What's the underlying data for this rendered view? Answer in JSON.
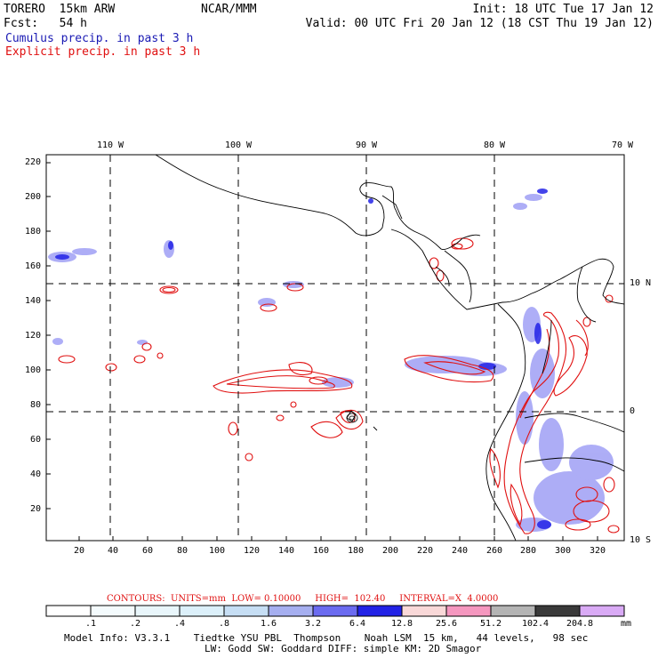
{
  "header": {
    "model": "TORERO  15km ARW",
    "forecast": "Fcst:   54 h",
    "org": "NCAR/MMM",
    "init": "Init: 18 UTC Tue 17 Jan 12",
    "valid": "Valid: 00 UTC Fri 20 Jan 12 (18 CST Thu 19 Jan 12)",
    "field1": "Cumulus precip. in past 3 h",
    "field2": "Explicit precip. in past 3 h",
    "field1_color": "#1a1ab4",
    "field2_color": "#e01010"
  },
  "map": {
    "lon_labels": [
      "110 W",
      "100 W",
      "90 W",
      "80 W",
      "70 W"
    ],
    "lat_labels": [
      "10 N",
      "0",
      "10 S"
    ],
    "y_ticks": [
      "220",
      "200",
      "180",
      "160",
      "140",
      "120",
      "100",
      "80",
      "60",
      "40",
      "20"
    ],
    "x_ticks": [
      "20",
      "40",
      "60",
      "80",
      "100",
      "120",
      "140",
      "160",
      "180",
      "200",
      "220",
      "240",
      "260",
      "280",
      "300",
      "320"
    ]
  },
  "contour_info": "CONTOURS:  UNITS=mm  LOW= 0.10000     HIGH=  102.40     INTERVAL=X  4.0000",
  "colorbar": {
    "labels": [
      ".1",
      ".2",
      ".4",
      ".8",
      "1.6",
      "3.2",
      "6.4",
      "12.8",
      "25.6",
      "51.2",
      "102.4",
      "204.8"
    ],
    "units": "mm",
    "colors": [
      "#ffffff",
      "#f4fbfd",
      "#e9f6fb",
      "#dcf0fa",
      "#c6def4",
      "#a6aff0",
      "#6b6bf0",
      "#2222e6",
      "#f9d8d8",
      "#f597bf",
      "#b4b4b4",
      "#3a3a3a",
      "#d9aaf5"
    ]
  },
  "footer": {
    "line1": "Model Info: V3.3.1    Tiedtke YSU PBL  Thompson    Noah LSM  15 km,   44 levels,   98 sec",
    "line2": "LW: Godd SW: Goddard DIFF: simple KM: 2D Smagor"
  }
}
